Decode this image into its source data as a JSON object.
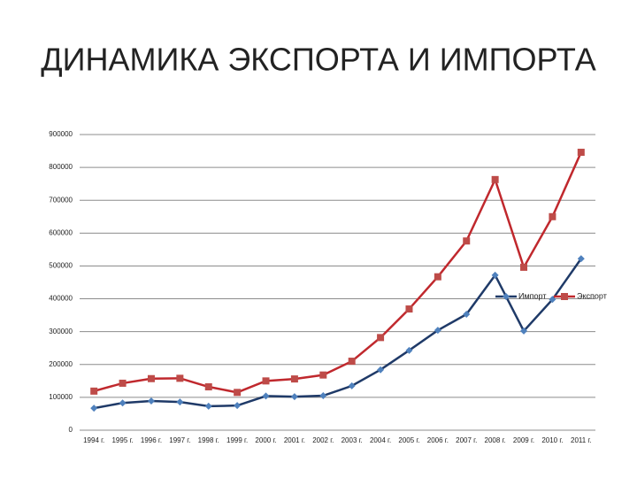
{
  "chart_data": {
    "type": "line",
    "title": "ДИНАМИКА ЭКСПОРТА И ИМПОРТА",
    "categories": [
      "1994 г.",
      "1995 г.",
      "1996 г.",
      "1997 г.",
      "1998 г.",
      "1999 г.",
      "2000 г.",
      "2001 г.",
      "2002 г.",
      "2003 г.",
      "2004 г.",
      "2005 г.",
      "2006 г.",
      "2007 г.",
      "2008 г.",
      "2009 г.",
      "2010 г.",
      "2011 г."
    ],
    "series": [
      {
        "name": "Импорт",
        "color": "#1f3a68",
        "marker_color": "#4f81bd",
        "marker": "diamond",
        "values": [
          67000,
          83000,
          89000,
          86000,
          73000,
          75000,
          104000,
          102000,
          105000,
          135000,
          184000,
          243000,
          304000,
          353000,
          472000,
          302000,
          398000,
          522000
        ]
      },
      {
        "name": "Экспорт",
        "color": "#c0282d",
        "marker_color": "#be4b48",
        "marker": "square",
        "values": [
          119000,
          143000,
          157000,
          158000,
          132000,
          115000,
          150000,
          156000,
          168000,
          210000,
          282000,
          369000,
          467000,
          576000,
          763000,
          496000,
          650000,
          846000
        ]
      }
    ],
    "ylim": [
      0,
      900000
    ],
    "yticks": [
      0,
      100000,
      200000,
      300000,
      400000,
      500000,
      600000,
      700000,
      800000,
      900000
    ],
    "grid": true,
    "legend": "right"
  }
}
